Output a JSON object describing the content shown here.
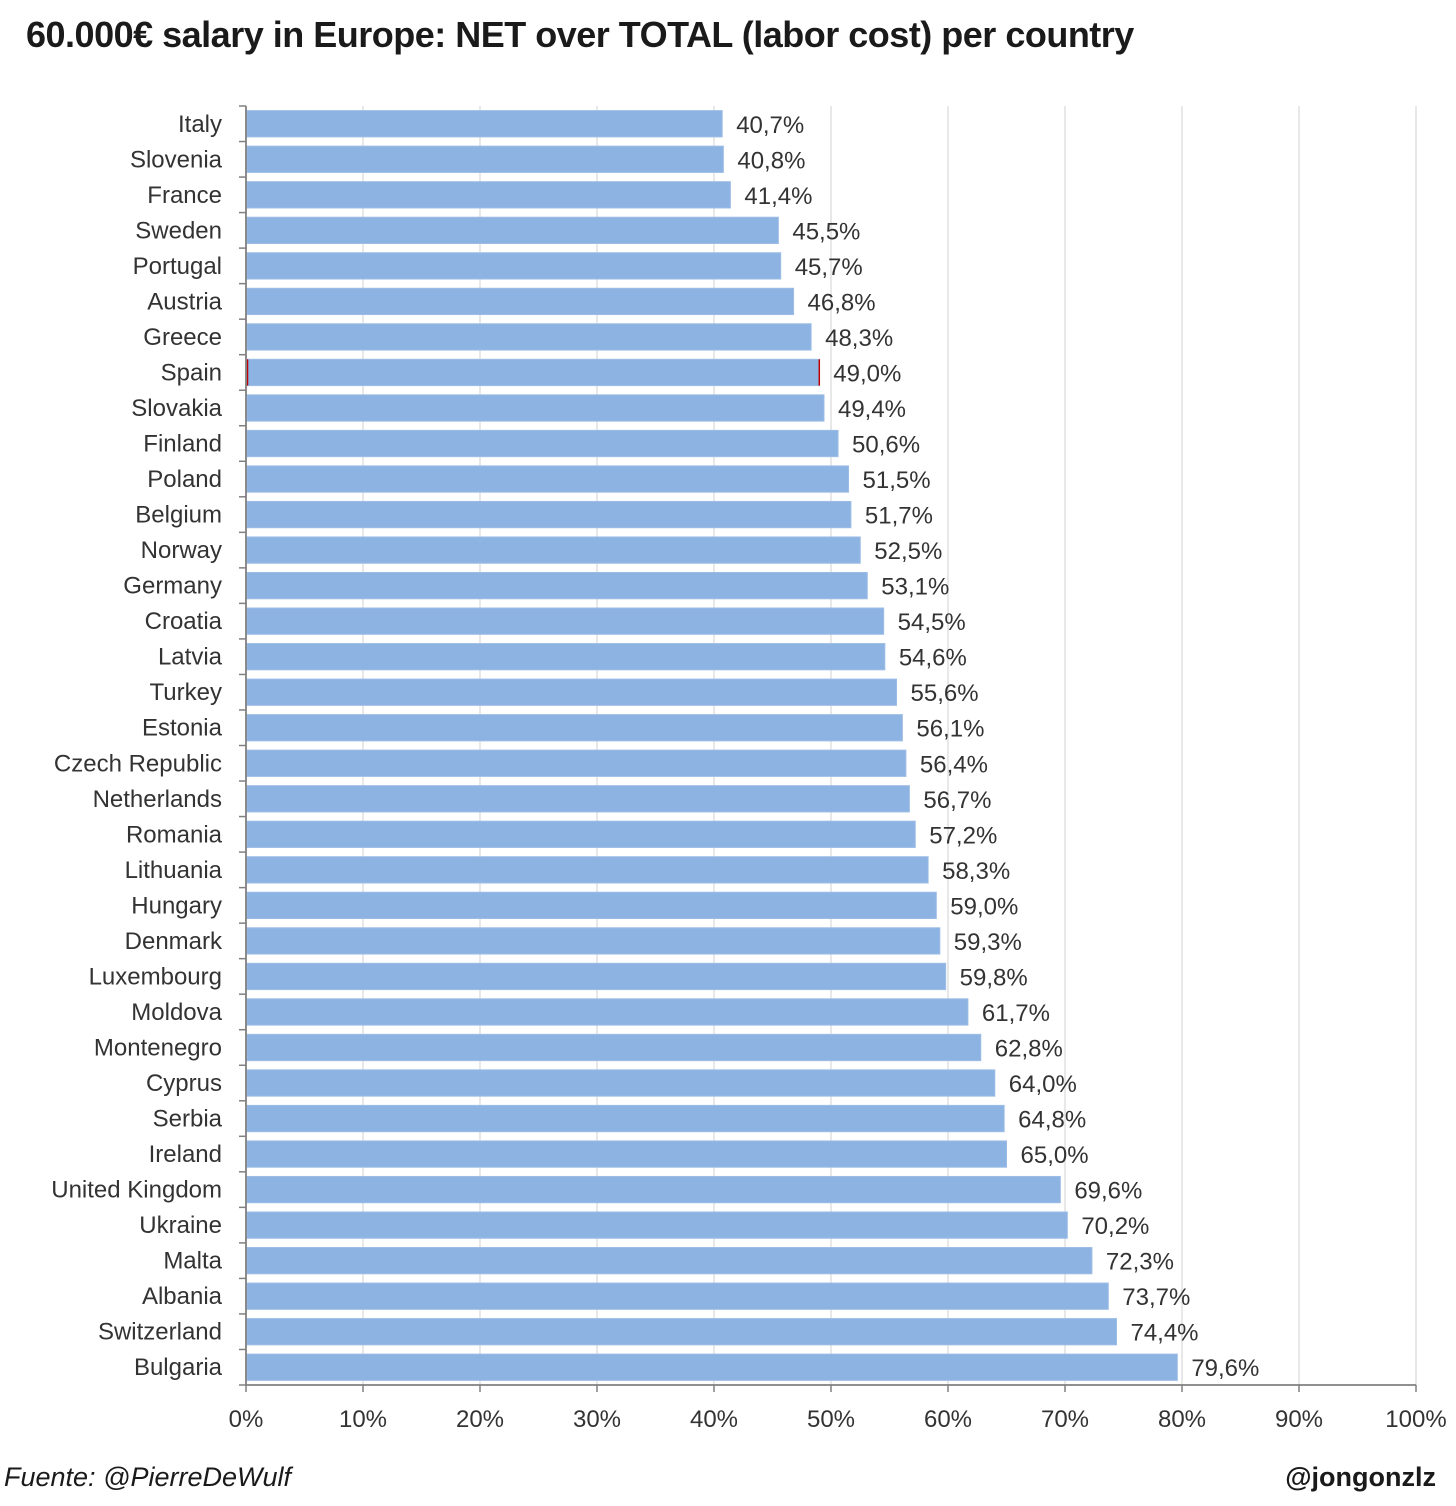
{
  "title": "60.000€ salary in Europe: NET over TOTAL (labor cost) per country",
  "source": "Fuente: @PierreDeWulf",
  "author": "@jongonzlz",
  "colors": {
    "bar": "#8db3e2",
    "bar_edge": "#9dbde6",
    "grid": "#d9d9d9",
    "axis": "#808080",
    "highlight_edge": "#c00000"
  },
  "chart_data": {
    "type": "bar",
    "orientation": "horizontal",
    "categories": [
      "Italy",
      "Slovenia",
      "France",
      "Sweden",
      "Portugal",
      "Austria",
      "Greece",
      "Spain",
      "Slovakia",
      "Finland",
      "Poland",
      "Belgium",
      "Norway",
      "Germany",
      "Croatia",
      "Latvia",
      "Turkey",
      "Estonia",
      "Czech Republic",
      "Netherlands",
      "Romania",
      "Lithuania",
      "Hungary",
      "Denmark",
      "Luxembourg",
      "Moldova",
      "Montenegro",
      "Cyprus",
      "Serbia",
      "Ireland",
      "United Kingdom",
      "Ukraine",
      "Malta",
      "Albania",
      "Switzerland",
      "Bulgaria"
    ],
    "values": [
      40.7,
      40.8,
      41.4,
      45.5,
      45.7,
      46.8,
      48.3,
      49.0,
      49.4,
      50.6,
      51.5,
      51.7,
      52.5,
      53.1,
      54.5,
      54.6,
      55.6,
      56.1,
      56.4,
      56.7,
      57.2,
      58.3,
      59.0,
      59.3,
      59.8,
      61.7,
      62.8,
      64.0,
      64.8,
      65.0,
      69.6,
      70.2,
      72.3,
      73.7,
      74.4,
      79.6
    ],
    "value_labels": [
      "40,7%",
      "40,8%",
      "41,4%",
      "45,5%",
      "45,7%",
      "46,8%",
      "48,3%",
      "49,0%",
      "49,4%",
      "50,6%",
      "51,5%",
      "51,7%",
      "52,5%",
      "53,1%",
      "54,5%",
      "54,6%",
      "55,6%",
      "56,1%",
      "56,4%",
      "56,7%",
      "57,2%",
      "58,3%",
      "59,0%",
      "59,3%",
      "59,8%",
      "61,7%",
      "62,8%",
      "64,0%",
      "64,8%",
      "65,0%",
      "69,6%",
      "70,2%",
      "72,3%",
      "73,7%",
      "74,4%",
      "79,6%"
    ],
    "xlim": [
      0,
      100
    ],
    "xticks": [
      "0%",
      "10%",
      "20%",
      "30%",
      "40%",
      "50%",
      "60%",
      "70%",
      "80%",
      "90%",
      "100%"
    ],
    "highlight": "Spain",
    "grid": true
  }
}
